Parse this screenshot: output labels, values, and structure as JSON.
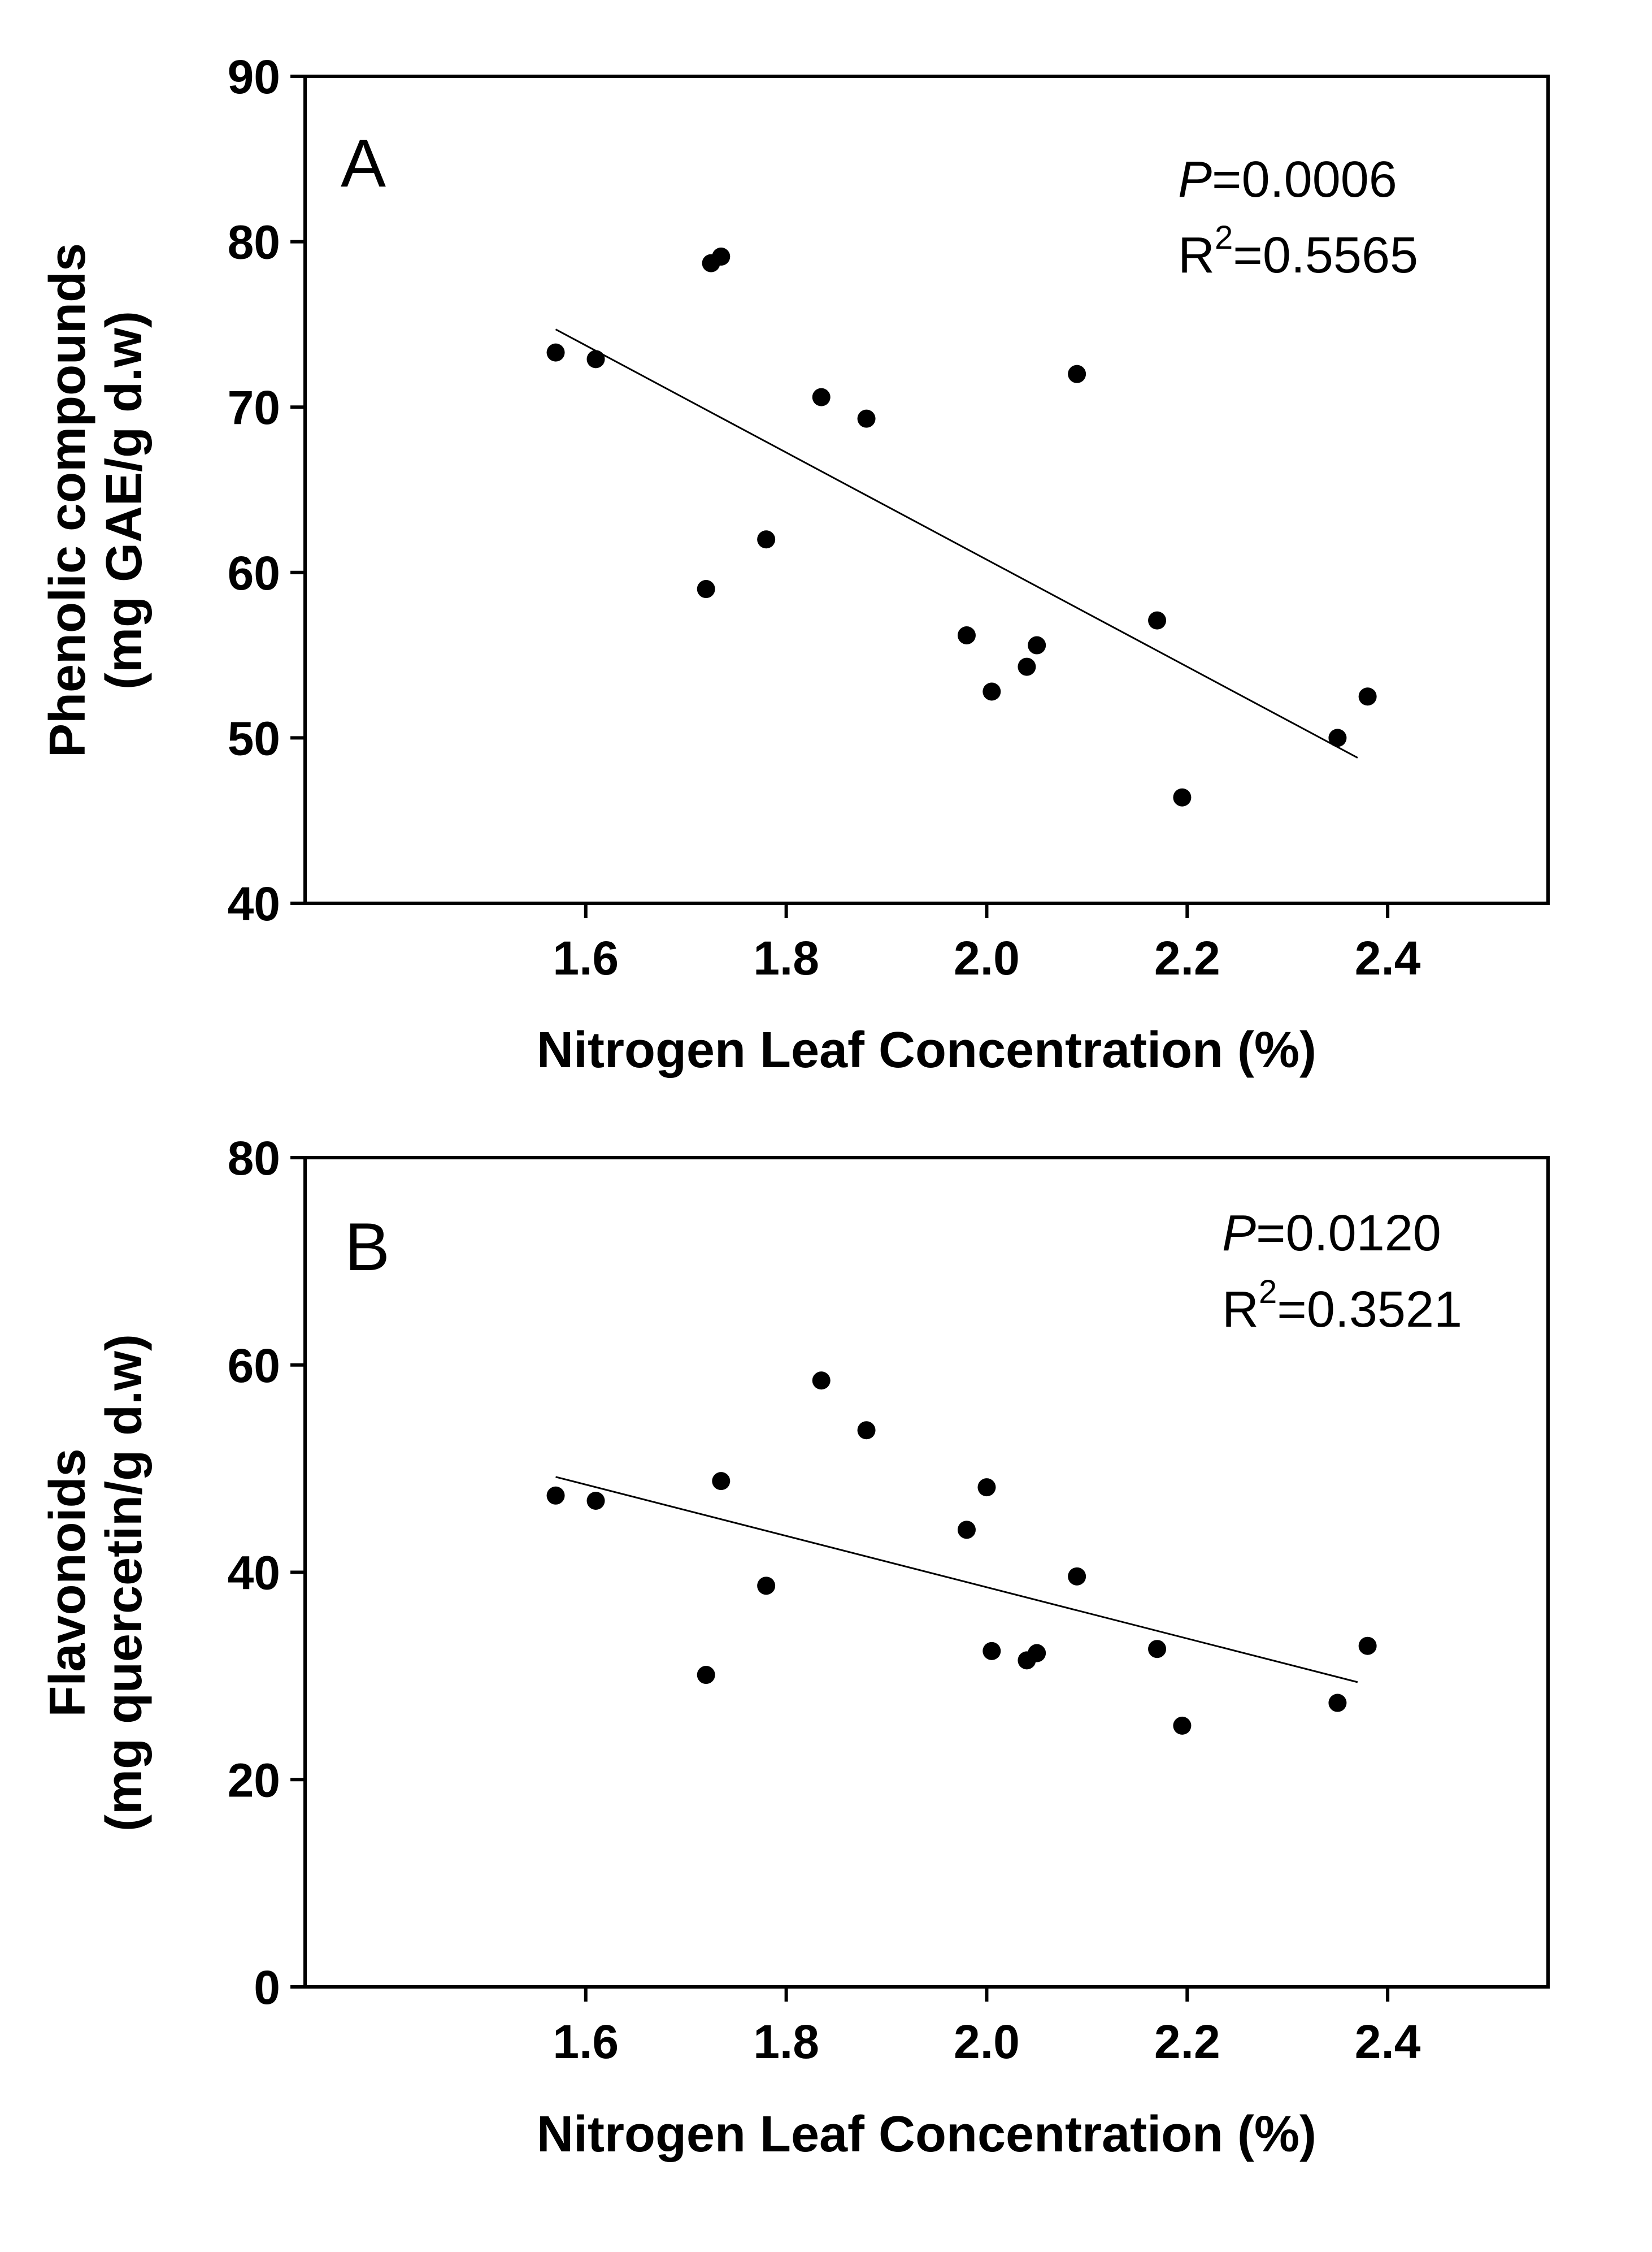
{
  "chart_data": [
    {
      "type": "scatter",
      "panel_label": "A",
      "xlabel": "Nitrogen Leaf Concentration (%)",
      "ylabel_lines": [
        "Phenolic compounds",
        "(mg GAE/g d.w)"
      ],
      "xlim": [
        1.32,
        2.56
      ],
      "ylim": [
        40,
        90
      ],
      "xticks": [
        1.6,
        1.8,
        2.0,
        2.2,
        2.4
      ],
      "xtick_labels": [
        "1.6",
        "1.8",
        "2.0",
        "2.2",
        "2.4"
      ],
      "yticks": [
        40,
        50,
        60,
        70,
        80,
        90
      ],
      "ytick_labels": [
        "40",
        "50",
        "60",
        "70",
        "80",
        "90"
      ],
      "p_label": "P",
      "p_value": "=0.0006",
      "r2_label": "R",
      "r2_sup": "2",
      "r2_value": "=0.5565",
      "points": [
        {
          "x": 1.57,
          "y": 73.3
        },
        {
          "x": 1.61,
          "y": 72.9
        },
        {
          "x": 1.72,
          "y": 59.0
        },
        {
          "x": 1.725,
          "y": 78.7
        },
        {
          "x": 1.735,
          "y": 79.1
        },
        {
          "x": 1.78,
          "y": 62.0
        },
        {
          "x": 1.835,
          "y": 70.6
        },
        {
          "x": 1.88,
          "y": 69.3
        },
        {
          "x": 1.98,
          "y": 56.2
        },
        {
          "x": 2.005,
          "y": 52.8
        },
        {
          "x": 2.04,
          "y": 54.3
        },
        {
          "x": 2.05,
          "y": 55.6
        },
        {
          "x": 2.09,
          "y": 72.0
        },
        {
          "x": 2.17,
          "y": 57.1
        },
        {
          "x": 2.195,
          "y": 46.4
        },
        {
          "x": 2.35,
          "y": 50.0
        },
        {
          "x": 2.38,
          "y": 52.5
        }
      ],
      "fit_line": {
        "x1": 1.57,
        "y1": 74.7,
        "x2": 2.37,
        "y2": 48.8
      }
    },
    {
      "type": "scatter",
      "panel_label": "B",
      "xlabel": "Nitrogen Leaf Concentration (%)",
      "ylabel_lines": [
        "Flavonoids",
        "(mg quercetin/g d.w)"
      ],
      "xlim": [
        1.32,
        2.56
      ],
      "ylim": [
        0,
        80
      ],
      "xticks": [
        1.6,
        1.8,
        2.0,
        2.2,
        2.4
      ],
      "xtick_labels": [
        "1.6",
        "1.8",
        "2.0",
        "2.2",
        "2.4"
      ],
      "yticks": [
        0,
        20,
        40,
        60,
        80
      ],
      "ytick_labels": [
        "0",
        "20",
        "40",
        "60",
        "80"
      ],
      "p_label": "P",
      "p_value": "=0.0120",
      "r2_label": "R",
      "r2_sup": "2",
      "r2_value": "=0.3521",
      "points": [
        {
          "x": 1.57,
          "y": 47.4
        },
        {
          "x": 1.61,
          "y": 46.9
        },
        {
          "x": 1.72,
          "y": 30.1
        },
        {
          "x": 1.735,
          "y": 48.8
        },
        {
          "x": 1.78,
          "y": 38.7
        },
        {
          "x": 1.835,
          "y": 58.5
        },
        {
          "x": 1.88,
          "y": 53.7
        },
        {
          "x": 1.98,
          "y": 44.1
        },
        {
          "x": 2.0,
          "y": 48.2
        },
        {
          "x": 2.005,
          "y": 32.4
        },
        {
          "x": 2.04,
          "y": 31.5
        },
        {
          "x": 2.05,
          "y": 32.2
        },
        {
          "x": 2.09,
          "y": 39.6
        },
        {
          "x": 2.17,
          "y": 32.6
        },
        {
          "x": 2.195,
          "y": 25.2
        },
        {
          "x": 2.35,
          "y": 27.4
        },
        {
          "x": 2.38,
          "y": 32.9
        }
      ],
      "fit_line": {
        "x1": 1.57,
        "y1": 49.2,
        "x2": 2.37,
        "y2": 29.4
      }
    }
  ]
}
